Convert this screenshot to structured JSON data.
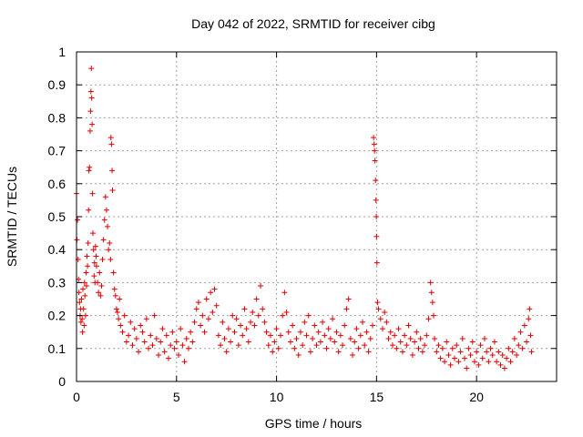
{
  "chart_data": {
    "type": "scatter",
    "title": "Day 042 of 2022, SRMTID for receiver cibg",
    "xlabel": "GPS time / hours",
    "ylabel": "SRMTID / TECUs",
    "xlim": [
      0,
      24
    ],
    "ylim": [
      0,
      1
    ],
    "xticks": [
      0,
      5,
      10,
      15,
      20
    ],
    "xtick_labels": [
      "0",
      "5",
      "10",
      "15",
      "20"
    ],
    "yticks": [
      0,
      0.1,
      0.2,
      0.3,
      0.4,
      0.5,
      0.6,
      0.7,
      0.8,
      0.9,
      1
    ],
    "ytick_labels": [
      "0",
      "0.1",
      "0.2",
      "0.3",
      "0.4",
      "0.5",
      "0.6",
      "0.7",
      "0.8",
      "0.9",
      "1"
    ],
    "grid": true,
    "marker": "+",
    "color": "#e00000",
    "series": [
      {
        "name": "SRMTID",
        "points": [
          [
            0.0,
            0.57
          ],
          [
            0.02,
            0.43
          ],
          [
            0.05,
            0.49
          ],
          [
            0.08,
            0.37
          ],
          [
            0.1,
            0.31
          ],
          [
            0.12,
            0.27
          ],
          [
            0.15,
            0.24
          ],
          [
            0.18,
            0.2
          ],
          [
            0.2,
            0.22
          ],
          [
            0.22,
            0.18
          ],
          [
            0.25,
            0.25
          ],
          [
            0.28,
            0.19
          ],
          [
            0.3,
            0.15
          ],
          [
            0.32,
            0.28
          ],
          [
            0.35,
            0.22
          ],
          [
            0.38,
            0.17
          ],
          [
            0.4,
            0.3
          ],
          [
            0.42,
            0.26
          ],
          [
            0.45,
            0.2
          ],
          [
            0.48,
            0.33
          ],
          [
            0.5,
            0.29
          ],
          [
            0.52,
            0.38
          ],
          [
            0.55,
            0.35
          ],
          [
            0.58,
            0.42
          ],
          [
            0.6,
            0.52
          ],
          [
            0.62,
            0.64
          ],
          [
            0.65,
            0.65
          ],
          [
            0.68,
            0.76
          ],
          [
            0.7,
            0.82
          ],
          [
            0.72,
            0.88
          ],
          [
            0.74,
            0.95
          ],
          [
            0.76,
            0.86
          ],
          [
            0.78,
            0.78
          ],
          [
            0.8,
            0.57
          ],
          [
            0.82,
            0.45
          ],
          [
            0.85,
            0.4
          ],
          [
            0.88,
            0.32
          ],
          [
            0.9,
            0.36
          ],
          [
            0.92,
            0.3
          ],
          [
            0.95,
            0.41
          ],
          [
            0.98,
            0.38
          ],
          [
            1.0,
            0.35
          ],
          [
            1.05,
            0.3
          ],
          [
            1.1,
            0.27
          ],
          [
            1.15,
            0.33
          ],
          [
            1.2,
            0.26
          ],
          [
            1.25,
            0.29
          ],
          [
            1.3,
            0.37
          ],
          [
            1.35,
            0.43
          ],
          [
            1.4,
            0.49
          ],
          [
            1.45,
            0.56
          ],
          [
            1.5,
            0.52
          ],
          [
            1.55,
            0.47
          ],
          [
            1.6,
            0.4
          ],
          [
            1.65,
            0.42
          ],
          [
            1.7,
            0.37
          ],
          [
            1.72,
            0.74
          ],
          [
            1.75,
            0.72
          ],
          [
            1.78,
            0.64
          ],
          [
            1.8,
            0.58
          ],
          [
            1.85,
            0.33
          ],
          [
            1.9,
            0.28
          ],
          [
            1.95,
            0.26
          ],
          [
            2.0,
            0.22
          ],
          [
            2.05,
            0.21
          ],
          [
            2.1,
            0.19
          ],
          [
            2.15,
            0.25
          ],
          [
            2.2,
            0.17
          ],
          [
            2.3,
            0.15
          ],
          [
            2.4,
            0.2
          ],
          [
            2.5,
            0.12
          ],
          [
            2.6,
            0.14
          ],
          [
            2.7,
            0.18
          ],
          [
            2.8,
            0.11
          ],
          [
            2.9,
            0.16
          ],
          [
            3.0,
            0.13
          ],
          [
            3.1,
            0.09
          ],
          [
            3.2,
            0.17
          ],
          [
            3.3,
            0.15
          ],
          [
            3.4,
            0.12
          ],
          [
            3.5,
            0.19
          ],
          [
            3.6,
            0.1
          ],
          [
            3.7,
            0.14
          ],
          [
            3.8,
            0.11
          ],
          [
            3.9,
            0.2
          ],
          [
            4.0,
            0.13
          ],
          [
            4.1,
            0.08
          ],
          [
            4.2,
            0.12
          ],
          [
            4.3,
            0.16
          ],
          [
            4.4,
            0.09
          ],
          [
            4.5,
            0.14
          ],
          [
            4.6,
            0.07
          ],
          [
            4.7,
            0.11
          ],
          [
            4.8,
            0.15
          ],
          [
            4.9,
            0.1
          ],
          [
            5.0,
            0.12
          ],
          [
            5.1,
            0.08
          ],
          [
            5.2,
            0.16
          ],
          [
            5.3,
            0.11
          ],
          [
            5.4,
            0.06
          ],
          [
            5.5,
            0.13
          ],
          [
            5.6,
            0.1
          ],
          [
            5.7,
            0.15
          ],
          [
            5.8,
            0.12
          ],
          [
            5.9,
            0.18
          ],
          [
            6.0,
            0.22
          ],
          [
            6.1,
            0.24
          ],
          [
            6.2,
            0.17
          ],
          [
            6.3,
            0.2
          ],
          [
            6.4,
            0.15
          ],
          [
            6.5,
            0.25
          ],
          [
            6.6,
            0.19
          ],
          [
            6.7,
            0.27
          ],
          [
            6.8,
            0.21
          ],
          [
            6.9,
            0.28
          ],
          [
            7.0,
            0.23
          ],
          [
            7.1,
            0.14
          ],
          [
            7.2,
            0.11
          ],
          [
            7.3,
            0.18
          ],
          [
            7.4,
            0.13
          ],
          [
            7.5,
            0.09
          ],
          [
            7.6,
            0.16
          ],
          [
            7.7,
            0.12
          ],
          [
            7.8,
            0.2
          ],
          [
            7.9,
            0.15
          ],
          [
            8.0,
            0.19
          ],
          [
            8.1,
            0.11
          ],
          [
            8.2,
            0.17
          ],
          [
            8.3,
            0.14
          ],
          [
            8.4,
            0.22
          ],
          [
            8.5,
            0.16
          ],
          [
            8.6,
            0.12
          ],
          [
            8.7,
            0.18
          ],
          [
            8.8,
            0.21
          ],
          [
            8.9,
            0.17
          ],
          [
            9.0,
            0.25
          ],
          [
            9.1,
            0.2
          ],
          [
            9.2,
            0.29
          ],
          [
            9.3,
            0.22
          ],
          [
            9.4,
            0.18
          ],
          [
            9.5,
            0.15
          ],
          [
            9.6,
            0.11
          ],
          [
            9.7,
            0.14
          ],
          [
            9.8,
            0.09
          ],
          [
            9.9,
            0.12
          ],
          [
            10.0,
            0.16
          ],
          [
            10.1,
            0.1
          ],
          [
            10.2,
            0.14
          ],
          [
            10.3,
            0.2
          ],
          [
            10.4,
            0.27
          ],
          [
            10.5,
            0.21
          ],
          [
            10.6,
            0.15
          ],
          [
            10.7,
            0.12
          ],
          [
            10.8,
            0.17
          ],
          [
            10.9,
            0.1
          ],
          [
            11.0,
            0.13
          ],
          [
            11.1,
            0.08
          ],
          [
            11.2,
            0.15
          ],
          [
            11.3,
            0.11
          ],
          [
            11.4,
            0.18
          ],
          [
            11.5,
            0.14
          ],
          [
            11.6,
            0.2
          ],
          [
            11.7,
            0.09
          ],
          [
            11.8,
            0.13
          ],
          [
            11.9,
            0.17
          ],
          [
            12.0,
            0.11
          ],
          [
            12.1,
            0.15
          ],
          [
            12.2,
            0.12
          ],
          [
            12.3,
            0.18
          ],
          [
            12.4,
            0.14
          ],
          [
            12.5,
            0.1
          ],
          [
            12.6,
            0.16
          ],
          [
            12.7,
            0.13
          ],
          [
            12.8,
            0.19
          ],
          [
            12.9,
            0.12
          ],
          [
            13.0,
            0.15
          ],
          [
            13.1,
            0.09
          ],
          [
            13.2,
            0.14
          ],
          [
            13.3,
            0.11
          ],
          [
            13.4,
            0.17
          ],
          [
            13.5,
            0.22
          ],
          [
            13.6,
            0.25
          ],
          [
            13.7,
            0.13
          ],
          [
            13.8,
            0.08
          ],
          [
            13.9,
            0.12
          ],
          [
            14.0,
            0.16
          ],
          [
            14.1,
            0.1
          ],
          [
            14.2,
            0.14
          ],
          [
            14.3,
            0.18
          ],
          [
            14.4,
            0.11
          ],
          [
            14.5,
            0.15
          ],
          [
            14.6,
            0.09
          ],
          [
            14.7,
            0.13
          ],
          [
            14.8,
            0.17
          ],
          [
            14.85,
            0.74
          ],
          [
            14.88,
            0.72
          ],
          [
            14.9,
            0.7
          ],
          [
            14.92,
            0.67
          ],
          [
            14.95,
            0.61
          ],
          [
            14.97,
            0.55
          ],
          [
            14.99,
            0.5
          ],
          [
            15.0,
            0.44
          ],
          [
            15.02,
            0.36
          ],
          [
            15.05,
            0.24
          ],
          [
            15.1,
            0.22
          ],
          [
            15.2,
            0.19
          ],
          [
            15.3,
            0.16
          ],
          [
            15.4,
            0.21
          ],
          [
            15.5,
            0.18
          ],
          [
            15.6,
            0.13
          ],
          [
            15.7,
            0.15
          ],
          [
            15.8,
            0.11
          ],
          [
            15.9,
            0.14
          ],
          [
            16.0,
            0.1
          ],
          [
            16.1,
            0.16
          ],
          [
            16.2,
            0.12
          ],
          [
            16.3,
            0.09
          ],
          [
            16.4,
            0.14
          ],
          [
            16.5,
            0.11
          ],
          [
            16.6,
            0.17
          ],
          [
            16.7,
            0.13
          ],
          [
            16.8,
            0.08
          ],
          [
            16.9,
            0.12
          ],
          [
            17.0,
            0.15
          ],
          [
            17.1,
            0.1
          ],
          [
            17.2,
            0.13
          ],
          [
            17.3,
            0.09
          ],
          [
            17.4,
            0.11
          ],
          [
            17.5,
            0.14
          ],
          [
            17.6,
            0.19
          ],
          [
            17.7,
            0.3
          ],
          [
            17.75,
            0.27
          ],
          [
            17.8,
            0.24
          ],
          [
            17.85,
            0.2
          ],
          [
            17.9,
            0.13
          ],
          [
            18.0,
            0.09
          ],
          [
            18.1,
            0.11
          ],
          [
            18.2,
            0.07
          ],
          [
            18.3,
            0.1
          ],
          [
            18.4,
            0.06
          ],
          [
            18.5,
            0.12
          ],
          [
            18.6,
            0.08
          ],
          [
            18.7,
            0.05
          ],
          [
            18.8,
            0.1
          ],
          [
            18.9,
            0.07
          ],
          [
            19.0,
            0.11
          ],
          [
            19.1,
            0.06
          ],
          [
            19.2,
            0.09
          ],
          [
            19.3,
            0.13
          ],
          [
            19.4,
            0.07
          ],
          [
            19.5,
            0.04
          ],
          [
            19.6,
            0.1
          ],
          [
            19.7,
            0.08
          ],
          [
            19.8,
            0.12
          ],
          [
            19.9,
            0.06
          ],
          [
            20.0,
            0.09
          ],
          [
            20.1,
            0.05
          ],
          [
            20.2,
            0.11
          ],
          [
            20.3,
            0.07
          ],
          [
            20.4,
            0.13
          ],
          [
            20.5,
            0.09
          ],
          [
            20.6,
            0.06
          ],
          [
            20.7,
            0.1
          ],
          [
            20.8,
            0.08
          ],
          [
            20.9,
            0.12
          ],
          [
            21.0,
            0.06
          ],
          [
            21.1,
            0.09
          ],
          [
            21.2,
            0.05
          ],
          [
            21.3,
            0.08
          ],
          [
            21.4,
            0.04
          ],
          [
            21.5,
            0.07
          ],
          [
            21.6,
            0.1
          ],
          [
            21.7,
            0.06
          ],
          [
            21.8,
            0.09
          ],
          [
            21.9,
            0.13
          ],
          [
            22.0,
            0.08
          ],
          [
            22.1,
            0.11
          ],
          [
            22.2,
            0.15
          ],
          [
            22.3,
            0.1
          ],
          [
            22.4,
            0.17
          ],
          [
            22.5,
            0.12
          ],
          [
            22.6,
            0.19
          ],
          [
            22.65,
            0.22
          ],
          [
            22.7,
            0.14
          ],
          [
            22.75,
            0.09
          ]
        ]
      }
    ]
  }
}
